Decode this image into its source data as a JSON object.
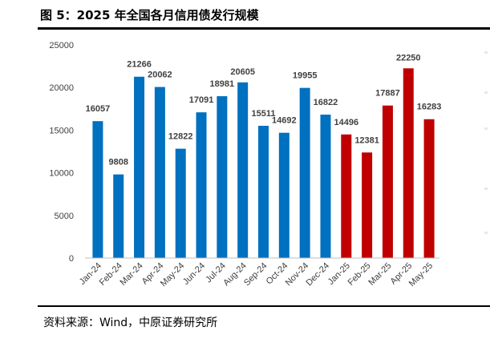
{
  "figure": {
    "title": "图 5：2025 年全国各月信用债发行规模",
    "source": "资料来源：Wind，中原证券研究所"
  },
  "colors": {
    "blue": "#0070C0",
    "red": "#C00000"
  },
  "chart_data": {
    "type": "bar",
    "title": "",
    "xlabel": "",
    "ylabel": "",
    "ylim": [
      0,
      25000
    ],
    "yticks": [
      0,
      5000,
      10000,
      15000,
      20000,
      25000
    ],
    "grid": false,
    "categories": [
      "Jan-24",
      "Feb-24",
      "Mar-24",
      "Apr-24",
      "May-24",
      "Jun-24",
      "Jul-24",
      "Aug-24",
      "Sep-24",
      "Oct-24",
      "Nov-24",
      "Dec-24",
      "Jan-25",
      "Feb-25",
      "Mar-25",
      "Apr-25",
      "May-25"
    ],
    "values": [
      16057,
      9808,
      21266,
      20062,
      12822,
      17091,
      18981,
      20605,
      15511,
      14692,
      19955,
      16822,
      14496,
      12381,
      17887,
      22250,
      16283
    ],
    "bar_colors": [
      "blue",
      "blue",
      "blue",
      "blue",
      "blue",
      "blue",
      "blue",
      "blue",
      "blue",
      "blue",
      "blue",
      "blue",
      "red",
      "red",
      "red",
      "red",
      "red"
    ]
  }
}
